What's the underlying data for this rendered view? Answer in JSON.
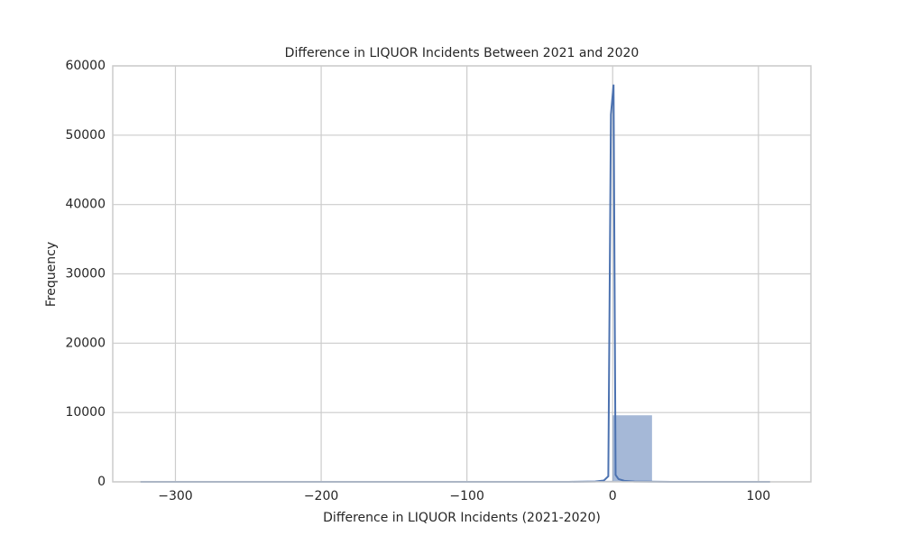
{
  "chart_data": {
    "type": "histogram",
    "title": "Difference in LIQUOR Incidents Between 2021 and 2020",
    "x_label": "Difference in LIQUOR Incidents (2021-2020)",
    "y_label": "Frequency",
    "bins": [
      -324,
      -297,
      -270,
      -243,
      -216,
      -189,
      -162,
      -135,
      -108,
      -81,
      -54,
      -27,
      0,
      27,
      54,
      81,
      108
    ],
    "values": [
      20,
      0,
      0,
      0,
      0,
      0,
      30,
      10,
      10,
      20,
      40,
      150,
      9600,
      80,
      30,
      20
    ],
    "color": "#4c72b0",
    "kde": {
      "x": [
        -324,
        -30,
        -12,
        -6,
        -3,
        -1.2,
        0.6,
        2,
        4,
        8,
        15,
        40,
        108
      ],
      "values": [
        0,
        0,
        50,
        200,
        800,
        53000,
        57300,
        1000,
        400,
        150,
        50,
        0,
        0
      ]
    },
    "xlim": [
      -343,
      136
    ],
    "ylim": [
      0,
      60000
    ],
    "xticks": [
      {
        "value": -300,
        "label": "−300"
      },
      {
        "value": -200,
        "label": "−200"
      },
      {
        "value": -100,
        "label": "−100"
      },
      0,
      100
    ],
    "yticks": [
      0,
      10000,
      20000,
      30000,
      40000,
      50000,
      60000
    ],
    "grid": true
  }
}
